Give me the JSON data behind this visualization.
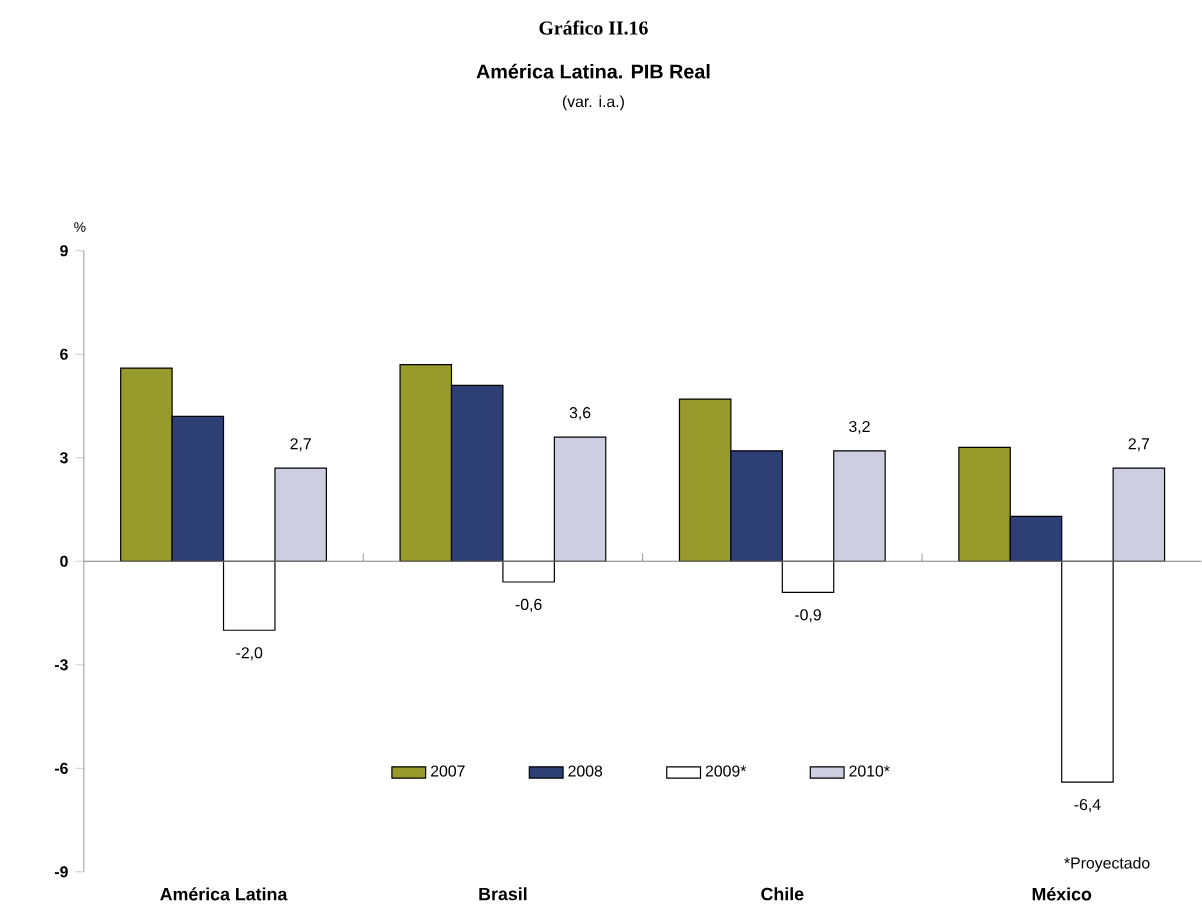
{
  "chart_data": {
    "type": "bar",
    "title": "Gráfico II.16",
    "subtitle": "América Latina. PIB Real",
    "ylabel": "%",
    "annotations": [
      "(var. i.a.)",
      "*Proyectado"
    ],
    "categories": [
      "América Latina",
      "Brasil",
      "Chile",
      "México"
    ],
    "ylim": [
      -9,
      9
    ],
    "yticks": [
      -9,
      -6,
      -3,
      0,
      3,
      6,
      9
    ],
    "legend": "bottom",
    "series": [
      {
        "name": "2007",
        "color": "#999a2c",
        "values": [
          5.6,
          5.7,
          4.7,
          3.3
        ]
      },
      {
        "name": "2008",
        "color": "#2e3f75",
        "values": [
          4.2,
          5.1,
          3.2,
          1.3
        ]
      },
      {
        "name": "2009*",
        "color": "#ffffff",
        "values": [
          -2.0,
          -0.6,
          -0.9,
          -6.4
        ],
        "value_labels": [
          "-2,0",
          "-0,6",
          "-0,9",
          "-6,4"
        ]
      },
      {
        "name": "2010*",
        "color": "#cdcfe0",
        "values": [
          2.7,
          3.6,
          3.2,
          2.7
        ],
        "value_labels": [
          "2,7",
          "3,6",
          "3,2",
          "2,7"
        ]
      }
    ]
  }
}
